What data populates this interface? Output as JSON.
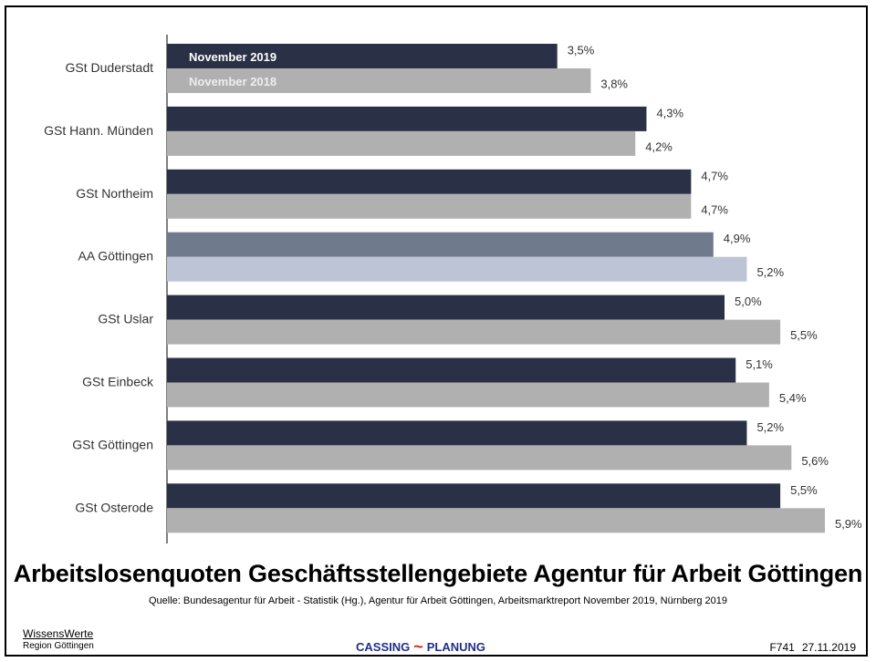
{
  "chart_data": {
    "type": "bar",
    "orientation": "horizontal",
    "title": "Arbeitslosenquoten Geschäftsstellengebiete Agentur für Arbeit Göttingen",
    "categories": [
      "GSt Duderstadt",
      "GSt Hann. Münden",
      "GSt Northeim",
      "AA Göttingen",
      "GSt Uslar",
      "GSt Einbeck",
      "GSt Göttingen",
      "GSt Osterode"
    ],
    "series": [
      {
        "name": "November 2019",
        "values": [
          3.5,
          4.3,
          4.7,
          4.9,
          5.0,
          5.1,
          5.2,
          5.5
        ],
        "labels": [
          "3,5%",
          "4,3%",
          "4,7%",
          "4,9%",
          "5,0%",
          "5,1%",
          "5,2%",
          "5,5%"
        ],
        "color": "#2a3146",
        "highlight_color": "#6f7a8d"
      },
      {
        "name": "November 2018",
        "values": [
          3.8,
          4.2,
          4.7,
          5.2,
          5.5,
          5.4,
          5.6,
          5.9
        ],
        "labels": [
          "3,8%",
          "4,2%",
          "4,7%",
          "5,2%",
          "5,5%",
          "5,4%",
          "5,6%",
          "5,9%"
        ],
        "color": "#b0b0b0",
        "highlight_color": "#bcc4d6"
      }
    ],
    "highlight_category": "AA Göttingen",
    "legend": "inside-top-left",
    "grid": false
  },
  "footer": {
    "source": "Quelle: Bundesagentur für Arbeit - Statistik (Hg.), Agentur für Arbeit Göttingen, Arbeitsmarktreport November 2019, Nürnberg 2019",
    "brand_line1": "WissensWerte",
    "brand_line2": "Region Göttingen",
    "logo_left": "CASSING",
    "logo_right": "PLANUNG",
    "code": "F741",
    "date": "27.11.2019"
  }
}
